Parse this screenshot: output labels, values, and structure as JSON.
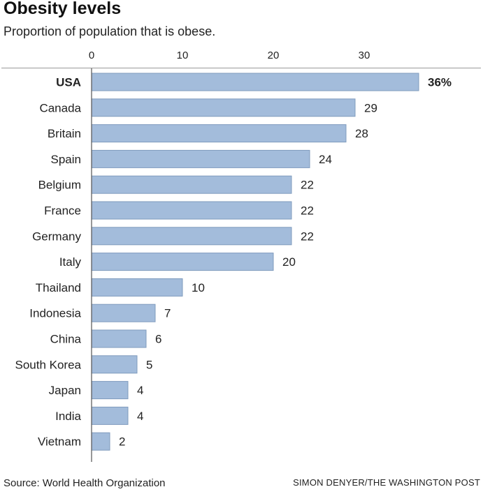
{
  "title": "Obesity levels",
  "subtitle": "Proportion of population that is obese.",
  "source": "Source: World Health Organization",
  "credit": "SIMON DENYER/THE WASHINGTON POST",
  "colors": {
    "bar": "#a3bcdb",
    "bar_stroke": "#7f9bbd",
    "axis": "#555555",
    "grid": "#999999"
  },
  "chart_data": {
    "type": "bar",
    "orientation": "horizontal",
    "categories": [
      "USA",
      "Canada",
      "Britain",
      "Spain",
      "Belgium",
      "France",
      "Germany",
      "Italy",
      "Thailand",
      "Indonesia",
      "China",
      "South Korea",
      "Japan",
      "India",
      "Vietnam"
    ],
    "values": [
      36,
      29,
      28,
      24,
      22,
      22,
      22,
      20,
      10,
      7,
      6,
      5,
      4,
      4,
      2
    ],
    "value_labels": [
      "36%",
      "29",
      "28",
      "24",
      "22",
      "22",
      "22",
      "20",
      "10",
      "7",
      "6",
      "5",
      "4",
      "4",
      "2"
    ],
    "highlight": "USA",
    "xticks": [
      0,
      10,
      20,
      30
    ],
    "tick_labels": [
      "0",
      "10",
      "20",
      "30"
    ],
    "xlim": [
      0,
      36
    ],
    "xlabel": "",
    "ylabel": "",
    "grid": false
  }
}
